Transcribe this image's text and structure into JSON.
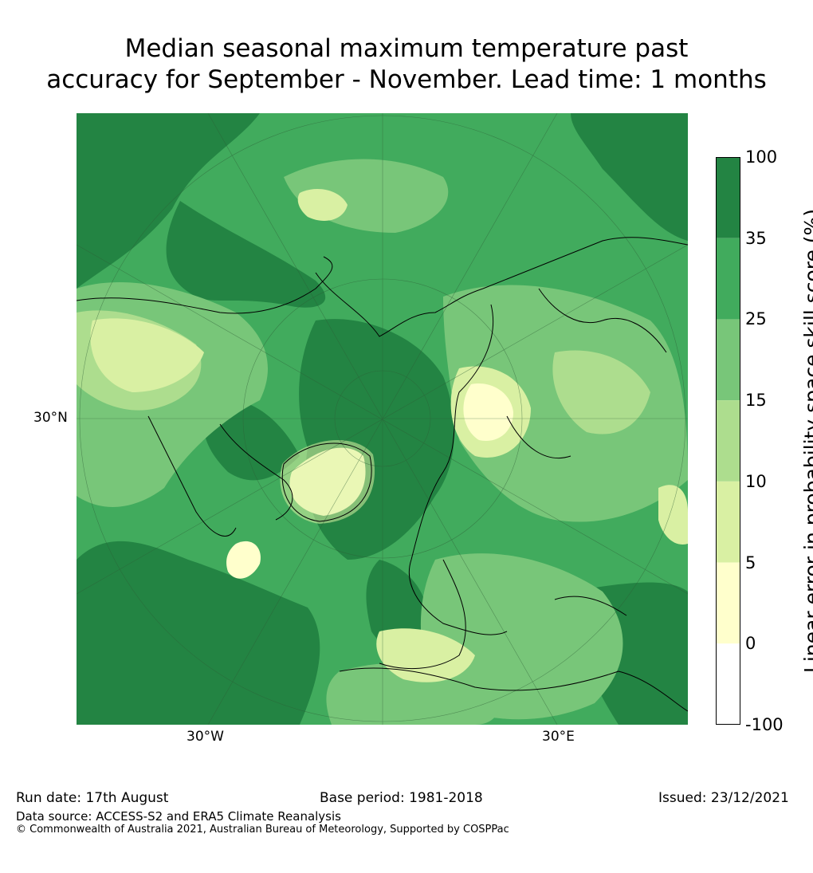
{
  "title": {
    "line1": "Median seasonal maximum temperature past",
    "line2": "accuracy for September - November. Lead time: 1 months"
  },
  "map": {
    "projection": "north-polar-stereographic",
    "lat_labels": [
      "30°N"
    ],
    "lon_labels": [
      "30°W",
      "30°E"
    ]
  },
  "colorbar": {
    "label": "Linear error in probability space skill score (%)",
    "ticks": [
      "100",
      "35",
      "25",
      "15",
      "10",
      "5",
      "0",
      "-100"
    ],
    "bins": [
      {
        "range": "35 to 100",
        "color": "#238443"
      },
      {
        "range": "25 to 35",
        "color": "#41ab5d"
      },
      {
        "range": "15 to 25",
        "color": "#78c679"
      },
      {
        "range": "10 to 15",
        "color": "#addd8e"
      },
      {
        "range": "5 to 10",
        "color": "#d9f0a3"
      },
      {
        "range": "0 to 5",
        "color": "#ffffcc"
      },
      {
        "range": "-100 to 0",
        "color": "#ffffff"
      }
    ]
  },
  "footer": {
    "run_date": "Run date: 17th August",
    "base_period": "Base period: 1981-2018",
    "issued": "Issued: 23/12/2021",
    "data_source": "Data source: ACCESS-S2 and ERA5 Climate Reanalysis",
    "copyright": "© Commonwealth of Australia 2021, Australian Bureau of Meteorology, Supported by COSPPac"
  }
}
